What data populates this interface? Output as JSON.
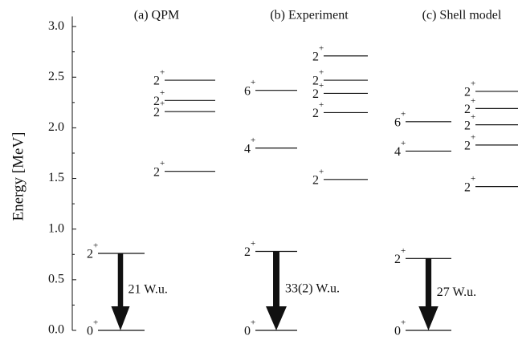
{
  "chart_data": {
    "type": "level-scheme",
    "ylabel": "Energy [MeV]",
    "ylim": [
      0,
      3.1
    ],
    "yticks": [
      {
        "value": 0,
        "label": "0.0"
      },
      0.5,
      {
        "value": 1,
        "label": "1.0"
      },
      1.5,
      {
        "value": 2,
        "label": "2.0"
      },
      2.5,
      {
        "value": 3,
        "label": "3.0"
      }
    ],
    "color": "#111111",
    "panels": [
      {
        "title": "(a) QPM",
        "levels": [
          {
            "spin": "0",
            "parity": "+",
            "energy": 0,
            "column": 0
          },
          {
            "spin": "2",
            "parity": "+",
            "energy": 0.76,
            "column": 0
          },
          {
            "spin": "2",
            "parity": "+",
            "energy": 1.57,
            "column": 1
          },
          {
            "spin": "2",
            "parity": "+",
            "energy": 2.16,
            "column": 1
          },
          {
            "spin": "2",
            "parity": "+",
            "energy": 2.27,
            "column": 1
          },
          {
            "spin": "2",
            "parity": "+",
            "energy": 2.47,
            "column": 1
          }
        ],
        "be2": 21,
        "be2_label": "21 W.u."
      },
      {
        "title": "(b) Experiment",
        "levels": [
          {
            "spin": "0",
            "parity": "+",
            "energy": 0,
            "column": 0
          },
          {
            "spin": "2",
            "parity": "+",
            "energy": 0.78,
            "column": 0
          },
          {
            "spin": "4",
            "parity": "+",
            "energy": 1.8,
            "column": 0
          },
          {
            "spin": "6",
            "parity": "+",
            "energy": 2.37,
            "column": 0
          },
          {
            "spin": "2",
            "parity": "+",
            "energy": 1.49,
            "column": 1
          },
          {
            "spin": "2",
            "parity": "+",
            "energy": 2.15,
            "column": 1
          },
          {
            "spin": "2",
            "parity": "+",
            "energy": 2.34,
            "column": 1
          },
          {
            "spin": "2",
            "parity": "+",
            "energy": 2.47,
            "column": 1
          },
          {
            "spin": "2",
            "parity": "+",
            "energy": 2.71,
            "column": 1
          }
        ],
        "be2": 33,
        "be2_label": "33(2) W.u."
      },
      {
        "title": "(c) Shell model",
        "levels": [
          {
            "spin": "0",
            "parity": "+",
            "energy": 0,
            "column": 0
          },
          {
            "spin": "2",
            "parity": "+",
            "energy": 0.71,
            "column": 0
          },
          {
            "spin": "4",
            "parity": "+",
            "energy": 1.77,
            "column": 0
          },
          {
            "spin": "6",
            "parity": "+",
            "energy": 2.06,
            "column": 0
          },
          {
            "spin": "2",
            "parity": "+",
            "energy": 1.42,
            "column": 1
          },
          {
            "spin": "2",
            "parity": "+",
            "energy": 1.83,
            "column": 1
          },
          {
            "spin": "2",
            "parity": "+",
            "energy": 2.03,
            "column": 1
          },
          {
            "spin": "2",
            "parity": "+",
            "energy": 2.19,
            "column": 1
          },
          {
            "spin": "2",
            "parity": "+",
            "energy": 2.36,
            "column": 1
          }
        ],
        "be2": 27,
        "be2_label": "27 W.u."
      }
    ]
  }
}
